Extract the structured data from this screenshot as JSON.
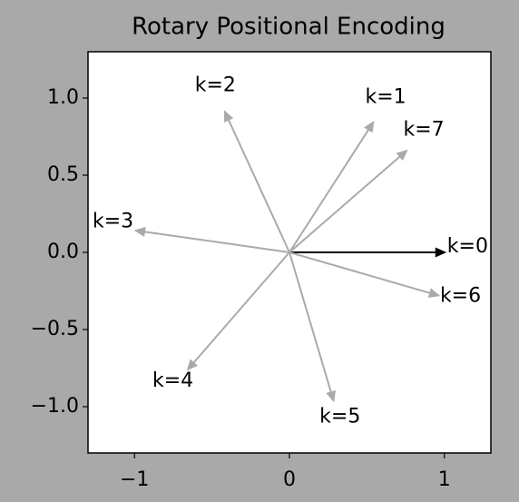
{
  "chart_data": {
    "type": "quiver",
    "title": "Rotary Positional Encoding",
    "labels": [
      "k=0",
      "k=1",
      "k=2",
      "k=3",
      "k=4",
      "k=5",
      "k=6",
      "k=7"
    ],
    "u": [
      1.0,
      0.54,
      -0.416,
      -0.99,
      -0.654,
      0.284,
      0.96,
      0.754
    ],
    "v": [
      0.0,
      0.841,
      0.909,
      0.141,
      -0.757,
      -0.959,
      -0.279,
      0.657
    ],
    "colors": [
      "#000000",
      "#aaaaaa",
      "#aaaaaa",
      "#aaaaaa",
      "#aaaaaa",
      "#aaaaaa",
      "#aaaaaa",
      "#aaaaaa"
    ],
    "xlim": [
      -1.3,
      1.3
    ],
    "ylim": [
      -1.3,
      1.3
    ],
    "xticks": [
      {
        "value": -1,
        "label": "−1"
      },
      0,
      1
    ],
    "yticks": [
      {
        "value": -1.0,
        "label": "−1.0"
      },
      {
        "value": -0.5,
        "label": "−0.5"
      },
      {
        "value": 0.0,
        "label": "0.0"
      },
      {
        "value": 0.5,
        "label": "0.5"
      },
      {
        "value": 1.0,
        "label": "1.0"
      }
    ]
  }
}
